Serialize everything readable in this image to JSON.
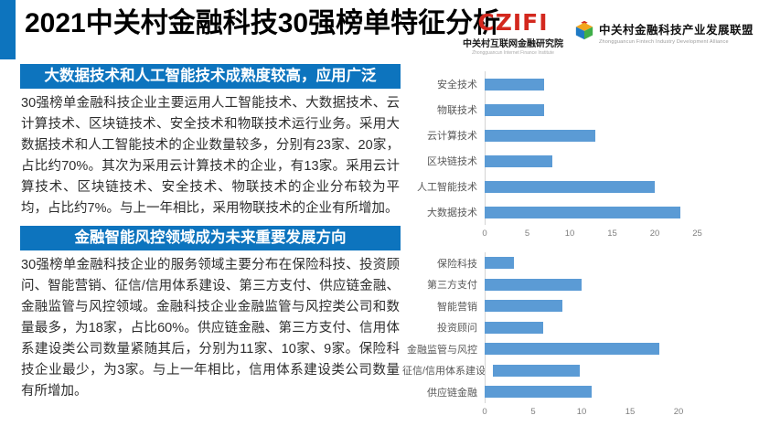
{
  "slide": {
    "title": "2021中关村金融科技30强榜单特征分析"
  },
  "logos": {
    "czifi": {
      "acronym": "CZIFI",
      "name_cn": "中关村互联网金融研究院",
      "name_en": "Zhongguancun Internet Finance Institute"
    },
    "alliance": {
      "name_cn": "中关村金融科技产业发展联盟",
      "name_en": "Zhongguancun Fintech Industry Development Alliance"
    }
  },
  "sections": [
    {
      "heading": "大数据技术和人工智能技术成熟度较高，应用广泛",
      "body": "30强榜单金融科技企业主要运用人工智能技术、大数据技术、云计算技术、区块链技术、安全技术和物联技术运行业务。采用大数据技术和人工智能技术的企业数量较多，分别有23家、20家，占比约70%。其次为采用云计算技术的企业，有13家。采用云计算技术、区块链技术、安全技术、物联技术的企业分布较为平均，占比约7%。与上一年相比，采用物联技术的企业有所增加。"
    },
    {
      "heading": "金融智能风控领域成为未来重要发展方向",
      "body": "30强榜单金融科技企业的服务领域主要分布在保险科技、投资顾问、智能营销、征信/信用体系建设、第三方支付、供应链金融、金融监管与风控领域。金融科技企业金融监管与风控类公司和数量最多，为18家，占比60%。供应链金融、第三方支付、信用体系建设类公司数量紧随其后，分别为11家、10家、9家。保险科技企业最少，为3家。与上一年相比，信用体系建设类公司数量有所增加。"
    }
  ],
  "colors": {
    "accent_blue": "#0d74be",
    "bar_blue": "#5b9bd5",
    "czifi_red": "#d3281e",
    "body_text": "#2d2d2d",
    "axis_text": "#7f7f7f"
  },
  "chart_data": [
    {
      "type": "bar",
      "orientation": "horizontal",
      "title": "",
      "categories": [
        "安全技术",
        "物联技术",
        "云计算技术",
        "区块链技术",
        "人工智能技术",
        "大数据技术"
      ],
      "values": [
        7,
        7,
        13,
        8,
        20,
        23
      ],
      "xticks": [
        0,
        5,
        10,
        15,
        20,
        25
      ],
      "xlim": [
        0,
        25
      ],
      "xlabel": "",
      "ylabel": "",
      "grid": false,
      "legend": false
    },
    {
      "type": "bar",
      "orientation": "horizontal",
      "title": "",
      "categories": [
        "保险科技",
        "第三方支付",
        "智能营销",
        "投资顾问",
        "金融监管与风控",
        "征信/信用体系建设",
        "供应链金融"
      ],
      "values": [
        3,
        10,
        8,
        6,
        18,
        9,
        11
      ],
      "xticks": [
        0,
        5,
        10,
        15,
        20
      ],
      "xlim": [
        0,
        20
      ],
      "xlabel": "",
      "ylabel": "",
      "grid": false,
      "legend": false
    }
  ]
}
